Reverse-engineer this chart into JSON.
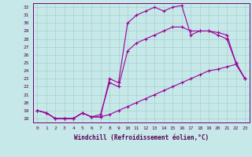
{
  "xlabel": "Windchill (Refroidissement éolien,°C)",
  "xlim": [
    -0.5,
    23.5
  ],
  "ylim": [
    17.5,
    32.5
  ],
  "yticks": [
    18,
    19,
    20,
    21,
    22,
    23,
    24,
    25,
    26,
    27,
    28,
    29,
    30,
    31,
    32
  ],
  "xticks": [
    0,
    1,
    2,
    3,
    4,
    5,
    6,
    7,
    8,
    9,
    10,
    11,
    12,
    13,
    14,
    15,
    16,
    17,
    18,
    19,
    20,
    21,
    22,
    23
  ],
  "background_color": "#c6e8e8",
  "grid_color": "#a8d0d0",
  "line_color": "#990099",
  "line1": [
    19.0,
    18.7,
    18.0,
    18.0,
    18.0,
    18.7,
    18.2,
    18.2,
    18.5,
    19.0,
    19.5,
    20.0,
    20.5,
    21.0,
    21.5,
    22.0,
    22.5,
    23.0,
    23.5,
    24.0,
    24.2,
    24.5,
    24.8,
    23.0
  ],
  "line2": [
    19.0,
    18.7,
    18.0,
    18.0,
    18.0,
    18.7,
    18.2,
    18.5,
    22.5,
    22.0,
    26.5,
    27.5,
    28.0,
    28.5,
    29.0,
    29.5,
    29.5,
    29.0,
    29.0,
    29.0,
    28.5,
    28.0,
    25.0,
    23.0
  ],
  "line3": [
    19.0,
    18.7,
    18.0,
    18.0,
    18.0,
    18.7,
    18.2,
    18.2,
    23.0,
    22.5,
    30.0,
    31.0,
    31.5,
    32.0,
    31.5,
    32.0,
    32.2,
    28.5,
    29.0,
    29.0,
    28.8,
    28.5,
    25.0,
    23.0
  ]
}
